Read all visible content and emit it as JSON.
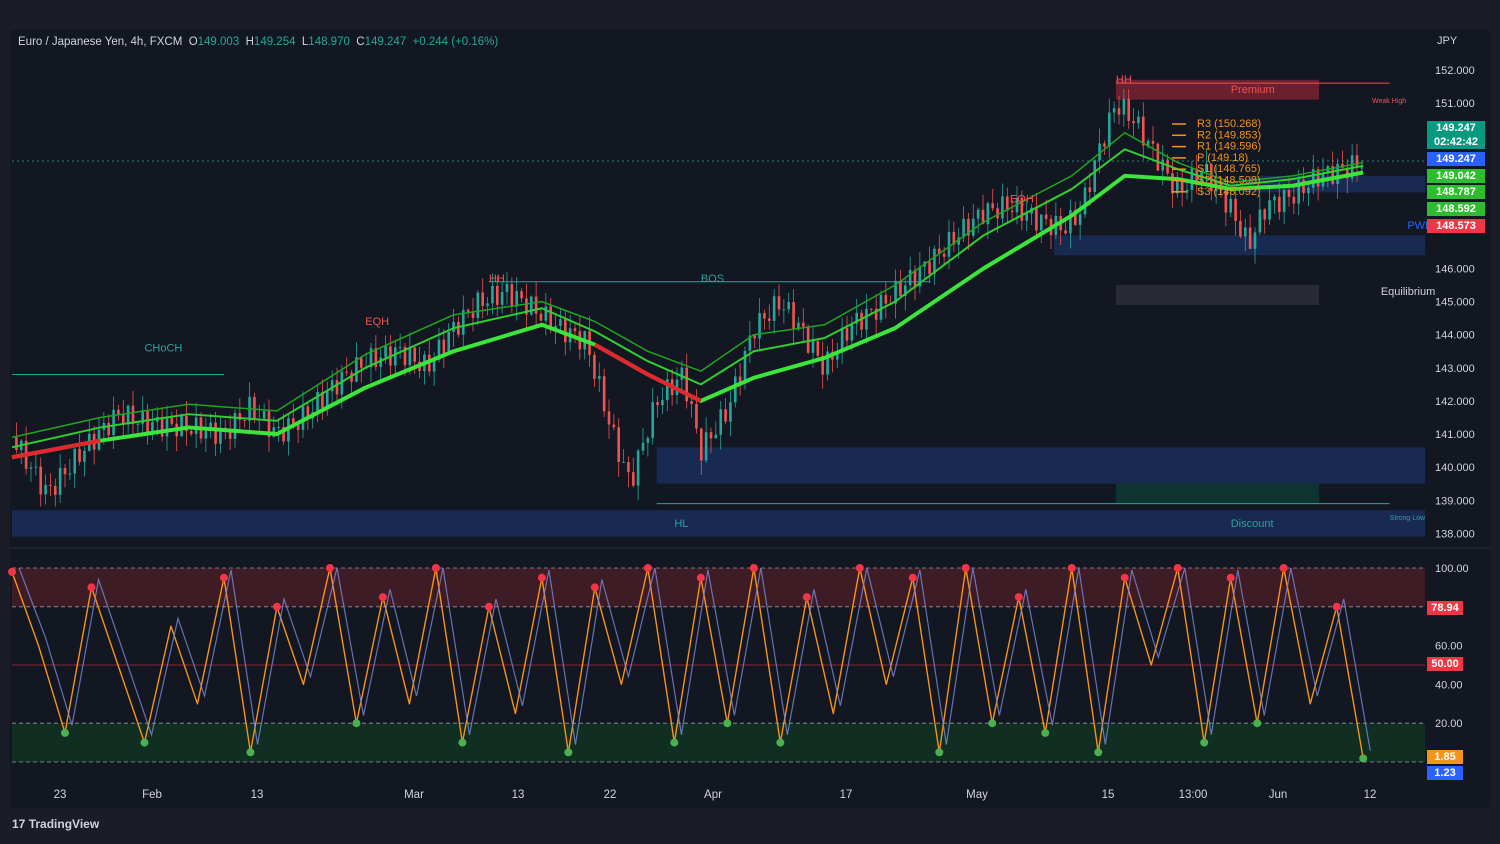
{
  "header": {
    "symbol": "Euro / Japanese Yen, 4h, FXCM",
    "o_label": "O",
    "o_value": "149.003",
    "h_label": "H",
    "h_value": "149.254",
    "l_label": "L",
    "l_value": "148.970",
    "c_label": "C",
    "c_value": "149.247",
    "change": "+0.244 (+0.16%)"
  },
  "currency": "JPY",
  "brand": "TradingView",
  "chart_data": [
    {
      "type": "candlestick",
      "title": "Euro / Japanese Yen, 4h, FXCM",
      "y_axis_ticks": [
        "152.000",
        "151.000",
        "146.000",
        "145.000",
        "144.000",
        "143.000",
        "142.000",
        "141.000",
        "140.000",
        "139.000",
        "138.000"
      ],
      "ylim": [
        137.8,
        152.6
      ],
      "x_axis_ticks": [
        "23",
        "Feb",
        "13",
        "Mar",
        "13",
        "22",
        "Apr",
        "17",
        "May",
        "15",
        "13:00",
        "Jun",
        "12"
      ],
      "close_path": [
        [
          0,
          140.9
        ],
        [
          4,
          139.2
        ],
        [
          8,
          140.5
        ],
        [
          12,
          141.6
        ],
        [
          16,
          141.3
        ],
        [
          20,
          141.2
        ],
        [
          24,
          141.0
        ],
        [
          27,
          141.8
        ],
        [
          30,
          141.0
        ],
        [
          33,
          141.5
        ],
        [
          37,
          142.6
        ],
        [
          40,
          143.2
        ],
        [
          44,
          143.5
        ],
        [
          47,
          143.0
        ],
        [
          50,
          144.2
        ],
        [
          53,
          145.0
        ],
        [
          56,
          145.3
        ],
        [
          59,
          144.8
        ],
        [
          62,
          144.2
        ],
        [
          65,
          143.8
        ],
        [
          68,
          141.0
        ],
        [
          70,
          139.5
        ],
        [
          73,
          142.0
        ],
        [
          76,
          142.8
        ],
        [
          78,
          140.5
        ],
        [
          81,
          141.7
        ],
        [
          84,
          144.2
        ],
        [
          87,
          145.0
        ],
        [
          89,
          144.3
        ],
        [
          92,
          143.0
        ],
        [
          95,
          144.3
        ],
        [
          98,
          144.8
        ],
        [
          101,
          145.5
        ],
        [
          104,
          146.2
        ],
        [
          107,
          147.0
        ],
        [
          110,
          147.7
        ],
        [
          113,
          147.9
        ],
        [
          116,
          147.5
        ],
        [
          119,
          147.2
        ],
        [
          121,
          147.7
        ],
        [
          123,
          149.5
        ],
        [
          125,
          151.0
        ],
        [
          127,
          150.5
        ],
        [
          130,
          149.2
        ],
        [
          132,
          148.3
        ],
        [
          135,
          149.0
        ],
        [
          138,
          147.8
        ],
        [
          140,
          146.7
        ],
        [
          142,
          147.9
        ],
        [
          145,
          148.2
        ],
        [
          148,
          148.8
        ],
        [
          151,
          149.0
        ],
        [
          153,
          149.25
        ]
      ],
      "series": [
        {
          "name": "",
          "values": [
            [
              0,
              140.3
            ],
            [
              10,
              140.8
            ],
            [
              20,
              141.2
            ],
            [
              30,
              141.0
            ],
            [
              40,
              142.4
            ],
            [
              50,
              143.5
            ],
            [
              60,
              144.3
            ],
            [
              66,
              143.7
            ],
            [
              72,
              142.8
            ],
            [
              78,
              142.0
            ],
            [
              84,
              142.7
            ],
            [
              92,
              143.3
            ],
            [
              100,
              144.2
            ],
            [
              110,
              146.0
            ],
            [
              120,
              147.6
            ],
            [
              126,
              148.8
            ],
            [
              132,
              148.7
            ],
            [
              138,
              148.4
            ],
            [
              145,
              148.5
            ],
            [
              153,
              148.9
            ]
          ]
        },
        {
          "name": "",
          "values": [
            [
              0,
              140.6
            ],
            [
              10,
              141.2
            ],
            [
              20,
              141.6
            ],
            [
              30,
              141.4
            ],
            [
              40,
              143.0
            ],
            [
              50,
              144.2
            ],
            [
              60,
              144.8
            ],
            [
              66,
              144.1
            ],
            [
              72,
              143.2
            ],
            [
              78,
              142.5
            ],
            [
              84,
              143.5
            ],
            [
              92,
              143.9
            ],
            [
              100,
              145.0
            ],
            [
              110,
              147.0
            ],
            [
              120,
              148.4
            ],
            [
              126,
              149.6
            ],
            [
              132,
              149.0
            ],
            [
              138,
              148.5
            ],
            [
              145,
              148.7
            ],
            [
              153,
              149.1
            ]
          ]
        },
        {
          "name": "",
          "values": [
            [
              0,
              140.9
            ],
            [
              10,
              141.5
            ],
            [
              20,
              141.9
            ],
            [
              30,
              141.7
            ],
            [
              40,
              143.4
            ],
            [
              50,
              144.6
            ],
            [
              60,
              145.0
            ],
            [
              66,
              144.4
            ],
            [
              72,
              143.5
            ],
            [
              78,
              142.9
            ],
            [
              84,
              144.0
            ],
            [
              92,
              144.3
            ],
            [
              100,
              145.5
            ],
            [
              110,
              147.4
            ],
            [
              120,
              148.8
            ],
            [
              126,
              150.1
            ],
            [
              132,
              149.2
            ],
            [
              138,
              148.6
            ],
            [
              145,
              148.8
            ],
            [
              153,
              149.2
            ]
          ]
        }
      ],
      "pivots": [
        {
          "label": "R3 (150.268)",
          "value": 150.268
        },
        {
          "label": "R2 (149.853)",
          "value": 149.853
        },
        {
          "label": "R1 (149.596)",
          "value": 149.596
        },
        {
          "label": "P (149.18)",
          "value": 149.18
        },
        {
          "label": "S1 (148.765)",
          "value": 148.765
        },
        {
          "label": "S2 (148.508)",
          "value": 148.508
        },
        {
          "label": "S3 (148.092)",
          "value": 148.092
        }
      ],
      "annotations": [
        {
          "text": "HH",
          "value": 151.6,
          "x": 125
        },
        {
          "text": "Premium",
          "value": 151.3,
          "x": 138
        },
        {
          "text": "Weak High",
          "value": 151.0,
          "x": 154
        },
        {
          "text": "EQH",
          "value": 148.0,
          "x": 113
        },
        {
          "text": "HH",
          "value": 145.6,
          "x": 54
        },
        {
          "text": "BOS",
          "value": 145.6,
          "x": 78
        },
        {
          "text": "EQH",
          "value": 144.3,
          "x": 40
        },
        {
          "text": "CHoCH",
          "value": 143.5,
          "x": 15
        },
        {
          "text": "PWL",
          "value": 147.2,
          "x": 158
        },
        {
          "text": "Equilibrium",
          "value": 145.2,
          "x": 155
        },
        {
          "text": "HL",
          "value": 138.2,
          "x": 75
        },
        {
          "text": "Discount",
          "value": 138.2,
          "x": 138
        },
        {
          "text": "Strong Low",
          "value": 138.4,
          "x": 156
        }
      ],
      "zones": [
        {
          "name": "premium",
          "from": 151.1,
          "to": 151.7,
          "color": "#b2283a"
        },
        {
          "name": "demand-upper",
          "from": 148.3,
          "to": 148.8,
          "color": "#1e3a7a"
        },
        {
          "name": "demand-mid",
          "from": 146.4,
          "to": 147.0,
          "color": "#1e3a7a"
        },
        {
          "name": "equilibrium",
          "from": 144.9,
          "to": 145.5,
          "color": "#3a3d47"
        },
        {
          "name": "demand-lower",
          "from": 139.5,
          "to": 140.6,
          "color": "#1e3a7a"
        },
        {
          "name": "discount-green",
          "from": 138.9,
          "to": 139.5,
          "color": "#0d4a3a"
        },
        {
          "name": "discount",
          "from": 137.9,
          "to": 138.7,
          "color": "#1e3a7a"
        }
      ],
      "price_tags": [
        {
          "text": "149.247",
          "color": "#089981"
        },
        {
          "text": "02:42:42",
          "color": "#089981"
        },
        {
          "text": "149.247",
          "color": "#2962ff"
        },
        {
          "text": "149.042",
          "color": "#2ebd30"
        },
        {
          "text": "148.787",
          "color": "#2ebd30"
        },
        {
          "text": "148.592",
          "color": "#2ebd30"
        },
        {
          "text": "148.573",
          "color": "#f23645"
        }
      ]
    },
    {
      "type": "line",
      "title": "",
      "y_axis_ticks": [
        "100.00",
        "60.00",
        "40.00",
        "20.00"
      ],
      "ylim": [
        0,
        100
      ],
      "bands": {
        "overbought": 80,
        "oversold": 0,
        "oversold_top": 20,
        "mid": 50
      },
      "series": [
        {
          "name": "",
          "color": "#f7931a",
          "values": [
            [
              0,
              98
            ],
            [
              3,
              60
            ],
            [
              6,
              15
            ],
            [
              9,
              90
            ],
            [
              12,
              50
            ],
            [
              15,
              10
            ],
            [
              18,
              70
            ],
            [
              21,
              30
            ],
            [
              24,
              95
            ],
            [
              27,
              5
            ],
            [
              30,
              80
            ],
            [
              33,
              40
            ],
            [
              36,
              100
            ],
            [
              39,
              20
            ],
            [
              42,
              85
            ],
            [
              45,
              30
            ],
            [
              48,
              100
            ],
            [
              51,
              10
            ],
            [
              54,
              80
            ],
            [
              57,
              25
            ],
            [
              60,
              95
            ],
            [
              63,
              5
            ],
            [
              66,
              90
            ],
            [
              69,
              40
            ],
            [
              72,
              100
            ],
            [
              75,
              10
            ],
            [
              78,
              95
            ],
            [
              81,
              20
            ],
            [
              84,
              100
            ],
            [
              87,
              10
            ],
            [
              90,
              85
            ],
            [
              93,
              25
            ],
            [
              96,
              100
            ],
            [
              99,
              40
            ],
            [
              102,
              95
            ],
            [
              105,
              5
            ],
            [
              108,
              100
            ],
            [
              111,
              20
            ],
            [
              114,
              85
            ],
            [
              117,
              15
            ],
            [
              120,
              100
            ],
            [
              123,
              5
            ],
            [
              126,
              95
            ],
            [
              129,
              50
            ],
            [
              132,
              100
            ],
            [
              135,
              10
            ],
            [
              138,
              95
            ],
            [
              141,
              20
            ],
            [
              144,
              100
            ],
            [
              147,
              30
            ],
            [
              150,
              80
            ],
            [
              153,
              1.85
            ]
          ]
        }
      ],
      "value_tags": [
        {
          "text": "78.94",
          "color": "#f23645"
        },
        {
          "text": "50.00",
          "color": "#f23645"
        },
        {
          "text": "1.85",
          "color": "#f7931a"
        },
        {
          "text": "1.23",
          "color": "#2962ff"
        }
      ]
    }
  ]
}
